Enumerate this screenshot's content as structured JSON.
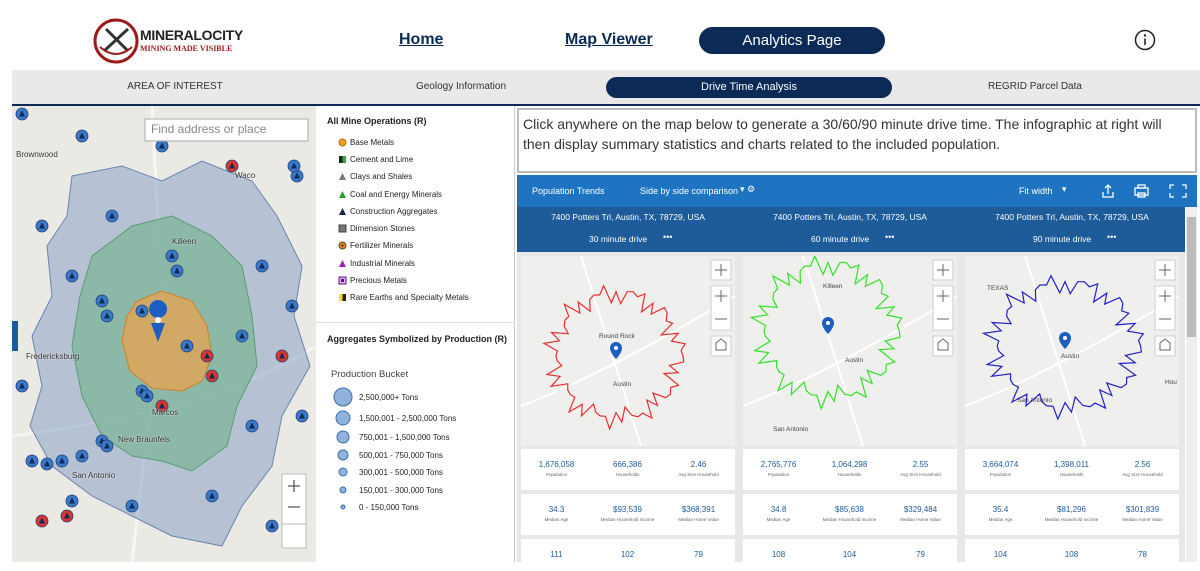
{
  "header": {
    "logo_title": "MINERALOCITY",
    "logo_subtitle": "MINING MADE VISIBLE",
    "nav": [
      "Home",
      "Map Viewer",
      "Analytics Page"
    ]
  },
  "tabs": [
    "AREA OF INTEREST",
    "Geology Information",
    "Drive Time Analysis",
    "REGRID Parcel Data"
  ],
  "map": {
    "search_placeholder": "Find address or place",
    "labels": [
      "Brownwood",
      "Waco",
      "Killeen",
      "Fredericksburg",
      "Marcos",
      "New Braunfels",
      "San Antonio"
    ]
  },
  "legend": {
    "title": "All Mine Operations (R)",
    "items": [
      "Base Metals",
      "Cement and Lime",
      "Clays and Shales",
      "Coal and Energy Minerals",
      "Construction Aggregates",
      "Dimension Stones",
      "Fertilizer Minerals",
      "Industrial Minerals",
      "Precious Metals",
      "Rare Earths and Specialty Metals"
    ],
    "production_title": "Aggregates Symbolized by Production (R)",
    "production_subtitle": "Production Bucket",
    "buckets": [
      "2,500,000+ Tons",
      "1,500,001 - 2,500,000 Tons",
      "750,001 - 1,500,000 Tons",
      "500,001 - 750,000 Tons",
      "300,001 - 500,000 Tons",
      "150,001 - 300,000 Tons",
      "0 - 150,000 Tons"
    ]
  },
  "instructions": "Click anywhere on the map below to generate a 30/60/90 minute drive time. The infographic at right will then display summary statistics and charts related to the included population.",
  "toolbar": {
    "title": "Population Trends",
    "mode": "Side by side comparison",
    "zoom": "Fit width"
  },
  "panels": [
    {
      "address": "7400 Potters Trl, Austin, TX, 78729, USA",
      "drive": "30 minute drive",
      "map_labels": [
        "Round Rock",
        "Austin"
      ],
      "stats": [
        [
          {
            "value": "1,676,058",
            "label": "Population"
          },
          {
            "value": "666,386",
            "label": "Households"
          },
          {
            "value": "2.46",
            "label": "Avg Size Household"
          }
        ],
        [
          {
            "value": "34.3",
            "label": "Median Age"
          },
          {
            "value": "$93,539",
            "label": "Median Household Income"
          },
          {
            "value": "$368,391",
            "label": "Median Home Value"
          }
        ],
        [
          {
            "value": "111"
          },
          {
            "value": "102"
          },
          {
            "value": "79"
          }
        ]
      ]
    },
    {
      "address": "7400 Potters Trl, Austin, TX, 78729, USA",
      "drive": "60 minute drive",
      "map_labels": [
        "Killeen",
        "Austin",
        "San Antonio"
      ],
      "stats": [
        [
          {
            "value": "2,765,776",
            "label": "Population"
          },
          {
            "value": "1,064,298",
            "label": "Households"
          },
          {
            "value": "2.55",
            "label": "Avg Size Household"
          }
        ],
        [
          {
            "value": "34.8",
            "label": "Median Age"
          },
          {
            "value": "$85,638",
            "label": "Median Household Income"
          },
          {
            "value": "$329,484",
            "label": "Median Home Value"
          }
        ],
        [
          {
            "value": "108"
          },
          {
            "value": "104"
          },
          {
            "value": "79"
          }
        ]
      ]
    },
    {
      "address": "7400 Potters Trl, Austin, TX, 78729, USA",
      "drive": "90 minute drive",
      "map_labels": [
        "TEXAS",
        "Austin",
        "San Antonio",
        "Hou"
      ],
      "stats": [
        [
          {
            "value": "3,664,074",
            "label": "Population"
          },
          {
            "value": "1,398,011",
            "label": "Households"
          },
          {
            "value": "2.56",
            "label": "Avg Size Household"
          }
        ],
        [
          {
            "value": "35.4",
            "label": "Median Age"
          },
          {
            "value": "$81,296",
            "label": "Median Household Income"
          },
          {
            "value": "$301,839",
            "label": "Median Home Value"
          }
        ],
        [
          {
            "value": "104"
          },
          {
            "value": "108"
          },
          {
            "value": "78"
          }
        ]
      ]
    }
  ]
}
